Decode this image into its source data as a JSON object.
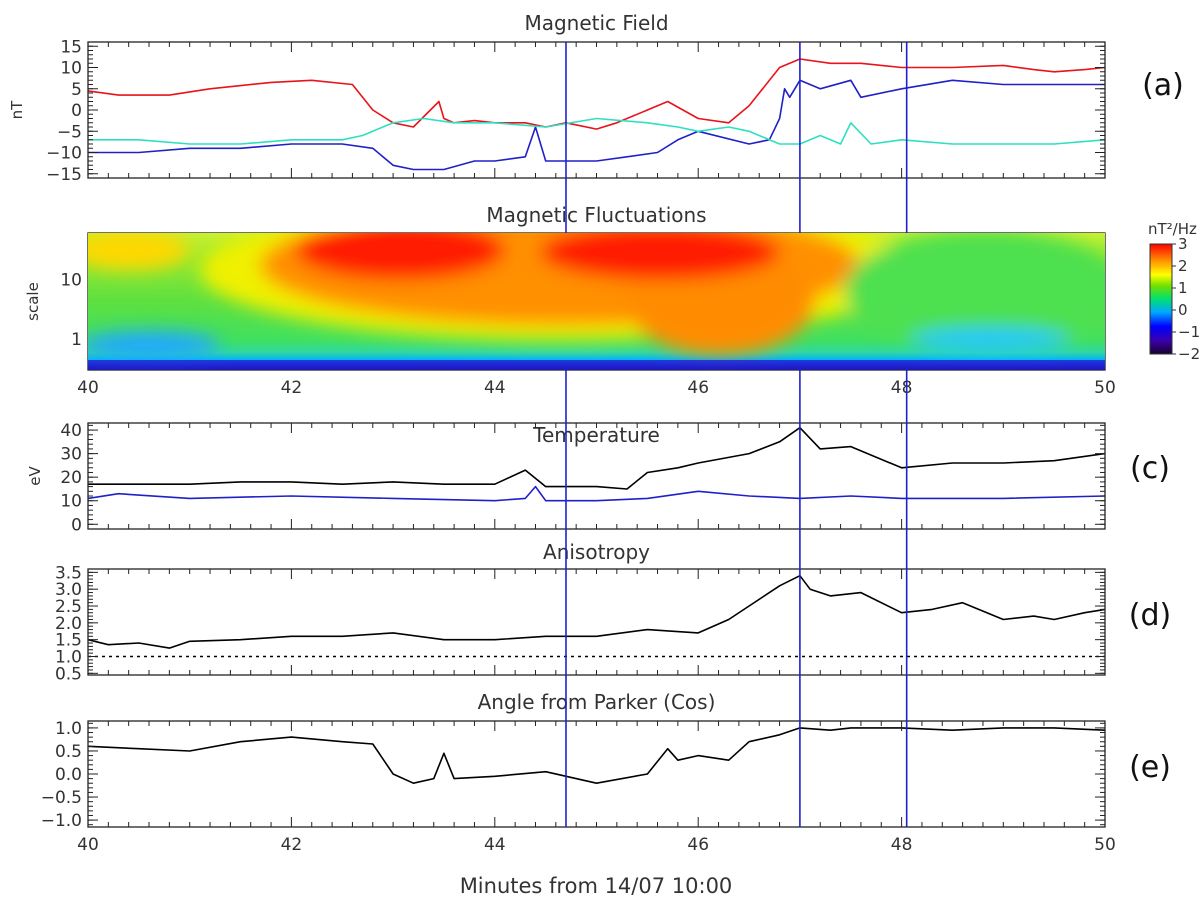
{
  "chart_data": {
    "type": "line",
    "x_label": "Minutes from 14/07 10:00",
    "x_range": [
      40,
      50
    ],
    "x_ticks": [
      40,
      42,
      44,
      46,
      48,
      50
    ],
    "x_tick_labels": [
      "40",
      "42",
      "44",
      "46",
      "48",
      "50"
    ],
    "vertical_markers": [
      44.7,
      47.0,
      48.05
    ],
    "marker_color": "#2222cc",
    "panels": [
      {
        "id": "a",
        "label": "(a)",
        "title": "Magnetic Field",
        "ylabel": "nT",
        "ylim": [
          -16,
          16
        ],
        "y_ticks": [
          -15,
          -10,
          -5,
          0,
          5,
          10,
          15
        ],
        "y_tick_labels": [
          "−15",
          "−10",
          "−5",
          "0",
          "5",
          "10",
          "15"
        ],
        "series": [
          {
            "name": "red",
            "color": "#e8141a",
            "x": [
              40,
              40.3,
              40.8,
              41.2,
              41.8,
              42.2,
              42.6,
              42.8,
              43.0,
              43.2,
              43.45,
              43.5,
              43.6,
              43.8,
              44.0,
              44.3,
              44.5,
              44.7,
              45.0,
              45.2,
              45.5,
              45.7,
              46.0,
              46.3,
              46.5,
              46.8,
              46.9,
              47.0,
              47.3,
              47.6,
              48.0,
              48.5,
              49.0,
              49.3,
              49.5,
              49.8,
              50
            ],
            "values": [
              4.5,
              3.5,
              3.5,
              5,
              6.5,
              7,
              6,
              0,
              -3,
              -4,
              2,
              -2,
              -3,
              -2.5,
              -3,
              -3,
              -4,
              -3,
              -4.5,
              -3,
              0,
              2,
              -2,
              -3,
              1,
              10,
              11,
              12,
              11,
              11,
              10,
              10,
              10.5,
              9.5,
              9,
              9.5,
              10
            ]
          },
          {
            "name": "blue",
            "color": "#2020c8",
            "x": [
              40,
              40.5,
              41,
              41.5,
              42,
              42.5,
              42.8,
              43.0,
              43.2,
              43.5,
              43.8,
              44.0,
              44.3,
              44.4,
              44.5,
              44.7,
              45.0,
              45.3,
              45.6,
              45.8,
              46.0,
              46.5,
              46.7,
              46.8,
              46.85,
              46.9,
              47.0,
              47.2,
              47.5,
              47.6,
              48.0,
              48.5,
              49.0,
              49.5,
              50
            ],
            "values": [
              -10,
              -10,
              -9,
              -9,
              -8,
              -8,
              -9,
              -13,
              -14,
              -14,
              -12,
              -12,
              -11,
              -4,
              -12,
              -12,
              -12,
              -11,
              -10,
              -7,
              -5,
              -8,
              -7,
              -2,
              5,
              3,
              7,
              5,
              7,
              3,
              5,
              7,
              6,
              6,
              6
            ]
          },
          {
            "name": "cyan",
            "color": "#2ee0c0",
            "x": [
              40,
              40.5,
              41,
              41.5,
              42,
              42.5,
              42.7,
              42.9,
              43.0,
              43.3,
              43.6,
              44.0,
              44.5,
              45.0,
              45.5,
              45.8,
              46.0,
              46.3,
              46.5,
              46.8,
              47.0,
              47.2,
              47.4,
              47.5,
              47.7,
              48.0,
              48.5,
              49.0,
              49.5,
              50
            ],
            "values": [
              -7,
              -7,
              -8,
              -8,
              -7,
              -7,
              -6,
              -4,
              -3,
              -2,
              -3,
              -3,
              -4,
              -2,
              -3,
              -4,
              -5,
              -4,
              -5,
              -8,
              -8,
              -6,
              -8,
              -3,
              -8,
              -7,
              -8,
              -8,
              -8,
              -7
            ]
          }
        ]
      },
      {
        "id": "b",
        "label": "(b)",
        "title": "Magnetic Fluctuations",
        "ylabel": "scale",
        "type": "heatmap",
        "y_scale": "log",
        "ylim": [
          0.3,
          60
        ],
        "y_ticks": [
          1,
          10
        ],
        "y_tick_labels": [
          "1",
          "10"
        ],
        "colorbar_title": "nT²/Hz",
        "colorbar_ticks": [
          3,
          2,
          1,
          0,
          -1,
          -2
        ],
        "colorbar_tick_labels": [
          "3",
          "2",
          "1",
          "0",
          "−1",
          "−2"
        ],
        "colorbar_range": [
          -2,
          3
        ]
      },
      {
        "id": "c",
        "label": "(c)",
        "title": "Temperature",
        "ylabel": "eV",
        "ylim": [
          -2,
          43
        ],
        "y_ticks": [
          0,
          10,
          20,
          30,
          40
        ],
        "y_tick_labels": [
          "0",
          "10",
          "20",
          "30",
          "40"
        ],
        "series": [
          {
            "name": "black",
            "color": "#000000",
            "x": [
              40,
              40.5,
              41,
              41.5,
              42,
              42.5,
              43,
              43.5,
              44,
              44.3,
              44.5,
              44.7,
              45,
              45.3,
              45.5,
              45.8,
              46,
              46.5,
              46.8,
              47.0,
              47.2,
              47.5,
              48,
              48.5,
              49,
              49.5,
              50
            ],
            "values": [
              17,
              17,
              17,
              18,
              18,
              17,
              18,
              17,
              17,
              23,
              16,
              16,
              16,
              15,
              22,
              24,
              26,
              30,
              35,
              41,
              32,
              33,
              24,
              26,
              26,
              27,
              30
            ]
          },
          {
            "name": "blue",
            "color": "#2020c8",
            "x": [
              40,
              40.3,
              41,
              42,
              43,
              44,
              44.3,
              44.4,
              44.5,
              44.7,
              45,
              45.5,
              46,
              46.5,
              47,
              47.5,
              48,
              49,
              50
            ],
            "values": [
              11,
              13,
              11,
              12,
              11,
              10,
              11,
              16,
              10,
              10,
              10,
              11,
              14,
              12,
              11,
              12,
              11,
              11,
              12
            ]
          }
        ]
      },
      {
        "id": "d",
        "label": "(d)",
        "title": "Anisotropy",
        "ylabel": "",
        "ylim": [
          0.45,
          3.6
        ],
        "y_ticks": [
          0.5,
          1.0,
          1.5,
          2.0,
          2.5,
          3.0,
          3.5
        ],
        "y_tick_labels": [
          "0.5",
          "1.0",
          "1.5",
          "2.0",
          "2.5",
          "3.0",
          "3.5"
        ],
        "reference_line": 1.0,
        "series": [
          {
            "name": "black",
            "color": "#000000",
            "x": [
              40,
              40.2,
              40.5,
              40.8,
              41,
              41.5,
              42,
              42.5,
              43,
              43.5,
              44,
              44.5,
              45,
              45.5,
              46,
              46.3,
              46.5,
              46.8,
              47.0,
              47.1,
              47.3,
              47.6,
              48,
              48.3,
              48.6,
              49,
              49.3,
              49.5,
              49.8,
              50
            ],
            "values": [
              1.5,
              1.35,
              1.4,
              1.25,
              1.45,
              1.5,
              1.6,
              1.6,
              1.7,
              1.5,
              1.5,
              1.6,
              1.6,
              1.8,
              1.7,
              2.1,
              2.5,
              3.1,
              3.4,
              3.0,
              2.8,
              2.9,
              2.3,
              2.4,
              2.6,
              2.1,
              2.2,
              2.1,
              2.3,
              2.4
            ]
          }
        ]
      },
      {
        "id": "e",
        "label": "(e)",
        "title": "Angle from Parker (Cos)",
        "ylabel": "",
        "ylim": [
          -1.15,
          1.15
        ],
        "y_ticks": [
          -1.0,
          -0.5,
          0.0,
          0.5,
          1.0
        ],
        "y_tick_labels": [
          "−1.0",
          "−0.5",
          "0.0",
          "0.5",
          "1.0"
        ],
        "series": [
          {
            "name": "black",
            "color": "#000000",
            "x": [
              40,
              40.5,
              41,
              41.5,
              42,
              42.5,
              42.8,
              43.0,
              43.2,
              43.4,
              43.5,
              43.6,
              44,
              44.5,
              45,
              45.5,
              45.7,
              45.8,
              46,
              46.3,
              46.5,
              46.8,
              47,
              47.3,
              47.5,
              48,
              48.5,
              49,
              49.5,
              50
            ],
            "values": [
              0.6,
              0.55,
              0.5,
              0.7,
              0.8,
              0.7,
              0.65,
              0.0,
              -0.2,
              -0.1,
              0.45,
              -0.1,
              -0.05,
              0.05,
              -0.2,
              0.0,
              0.55,
              0.3,
              0.4,
              0.3,
              0.7,
              0.85,
              1.0,
              0.95,
              1.0,
              1.0,
              0.95,
              1.0,
              1.0,
              0.95
            ]
          }
        ]
      }
    ]
  }
}
